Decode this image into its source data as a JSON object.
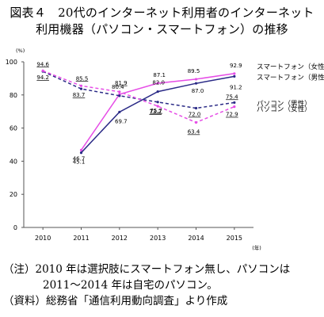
{
  "title_line1": "図表４　20代のインターネット利用者のインターネット",
  "title_line2": "利用機器（パソコン・スマートフォン）の推移",
  "notes": {
    "line1": "（注）2010 年は選択肢にスマートフォン無し、パソコンは",
    "line2": "2011～2014 年は自宅のパソコン。",
    "line3": "（資料）総務省「通信利用動向調査」より作成"
  },
  "chart_data": {
    "type": "line",
    "x": [
      "2010",
      "2011",
      "2012",
      "2013",
      "2014",
      "2015"
    ],
    "ylim": [
      0,
      100
    ],
    "yticks": [
      0,
      20,
      40,
      60,
      80,
      100
    ],
    "ylabel": "(%)",
    "xlabel": "(年)",
    "grid": false,
    "series": [
      {
        "name": "スマートフォン（女性）",
        "color": "#e64de6",
        "dash": false,
        "values": [
          null,
          46.7,
          80.4,
          87.1,
          89.5,
          92.9
        ],
        "labels": [
          "",
          "46.7",
          "80.4",
          "87.1",
          "89.5",
          "92.9"
        ]
      },
      {
        "name": "スマートフォン（男性）",
        "color": "#2a2a86",
        "dash": false,
        "values": [
          null,
          45.1,
          69.7,
          82.0,
          87.0,
          91.2
        ],
        "labels": [
          "",
          "45.1",
          "69.7",
          "82.0",
          "87.0",
          "91.2"
        ]
      },
      {
        "name": "パソコン（男性）",
        "color": "#2a2a86",
        "dash": true,
        "values": [
          94.2,
          83.7,
          79.5,
          75.7,
          72.0,
          75.4
        ],
        "labels": [
          "94.2",
          "83.7",
          "",
          "75.7",
          "72.0",
          "75.4"
        ]
      },
      {
        "name": "パソコン（女性）",
        "color": "#e64de6",
        "dash": true,
        "values": [
          94.6,
          85.5,
          81.9,
          73.2,
          63.4,
          72.9
        ],
        "labels": [
          "94.6",
          "85.5",
          "81.9",
          "73.2",
          "63.4",
          "72.9"
        ]
      }
    ]
  }
}
